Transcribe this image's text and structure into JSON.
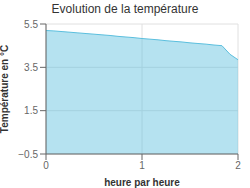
{
  "chart_data": {
    "type": "area",
    "title": "Evolution de la température",
    "xlabel": "heure par heure",
    "ylabel": "Température en °C",
    "x": [
      0,
      0.083,
      0.167,
      0.25,
      0.333,
      0.417,
      0.5,
      0.583,
      0.667,
      0.75,
      0.833,
      0.917,
      1.0,
      1.083,
      1.167,
      1.25,
      1.333,
      1.417,
      1.5,
      1.583,
      1.667,
      1.75,
      1.833,
      1.917,
      2.0
    ],
    "values": [
      5.2,
      5.18,
      5.15,
      5.12,
      5.09,
      5.06,
      5.03,
      5.0,
      4.97,
      4.93,
      4.9,
      4.87,
      4.83,
      4.8,
      4.77,
      4.73,
      4.7,
      4.67,
      4.63,
      4.6,
      4.57,
      4.53,
      4.5,
      4.1,
      3.85
    ],
    "color": "#5bbfde",
    "xlim": [
      0,
      2
    ],
    "ylim": [
      -0.5,
      5.5
    ],
    "xticks": [
      0,
      1,
      2
    ],
    "yticks": [
      {
        "value": -0.5,
        "label": "−0.5"
      },
      1.5,
      3.5,
      5.5
    ],
    "grid": true
  }
}
